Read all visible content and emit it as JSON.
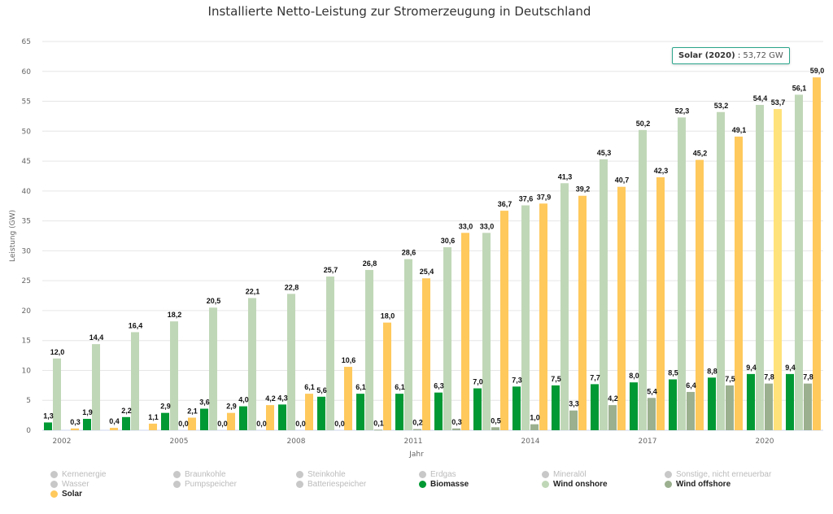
{
  "chart_data": {
    "type": "bar",
    "title": "Installierte Netto-Leistung zur Stromerzeugung in Deutschland",
    "xlabel": "Jahr",
    "ylabel": "Leistung (GW)",
    "ylim": [
      0,
      65
    ],
    "yticks": [
      0,
      5,
      10,
      15,
      20,
      25,
      30,
      35,
      40,
      45,
      50,
      55,
      60,
      65
    ],
    "grid": true,
    "legend_position": "bottom",
    "categories": [
      2002,
      2003,
      2004,
      2005,
      2006,
      2007,
      2008,
      2009,
      2010,
      2011,
      2012,
      2013,
      2014,
      2015,
      2016,
      2017,
      2018,
      2019,
      2020,
      2021
    ],
    "xtick_labels": [
      "2002",
      "2005",
      "2008",
      "2011",
      "2014",
      "2017",
      "2020"
    ],
    "series": [
      {
        "name": "Biomasse",
        "color": "#009933",
        "values": [
          1.3,
          1.9,
          2.2,
          2.9,
          3.6,
          4.0,
          4.3,
          5.6,
          6.1,
          6.1,
          6.3,
          7.0,
          7.3,
          7.5,
          7.7,
          8.0,
          8.5,
          8.8,
          9.4,
          9.4
        ]
      },
      {
        "name": "Wind onshore",
        "color": "#c0d7b7",
        "values": [
          12.0,
          14.4,
          16.4,
          18.2,
          20.5,
          22.1,
          22.8,
          25.7,
          26.8,
          28.6,
          30.6,
          33.0,
          37.6,
          41.3,
          45.3,
          50.2,
          52.3,
          53.2,
          54.4,
          56.1
        ]
      },
      {
        "name": "Wind offshore",
        "color": "#9bb08f",
        "values": [
          null,
          null,
          null,
          0.0,
          0.0,
          0.0,
          0.0,
          0.0,
          0.1,
          0.2,
          0.3,
          0.5,
          1.0,
          3.3,
          4.2,
          5.4,
          6.4,
          7.5,
          7.8,
          7.8
        ]
      },
      {
        "name": "Solar",
        "color": "#ffc95c",
        "values": [
          0.3,
          0.4,
          1.1,
          2.1,
          2.9,
          4.2,
          6.1,
          10.6,
          18.0,
          25.4,
          33.0,
          36.7,
          37.9,
          39.2,
          40.7,
          42.3,
          45.2,
          49.1,
          53.7,
          59.0
        ]
      }
    ],
    "highlight": {
      "series": "Solar",
      "category": 2020,
      "color": "#ffe27a"
    },
    "tooltip": {
      "label": "Solar (2020)",
      "separator": " : ",
      "value": "53,72 GW"
    }
  },
  "legend": [
    {
      "label": "Kernenergie",
      "color": "#c8c8c8",
      "active": false
    },
    {
      "label": "Braunkohle",
      "color": "#c8c8c8",
      "active": false
    },
    {
      "label": "Steinkohle",
      "color": "#c8c8c8",
      "active": false
    },
    {
      "label": "Erdgas",
      "color": "#c8c8c8",
      "active": false
    },
    {
      "label": "Mineralöl",
      "color": "#c8c8c8",
      "active": false
    },
    {
      "label": "Sonstige, nicht erneuerbar",
      "color": "#c8c8c8",
      "active": false
    },
    {
      "label": "Wasser",
      "color": "#c8c8c8",
      "active": false
    },
    {
      "label": "Pumpspeicher",
      "color": "#c8c8c8",
      "active": false
    },
    {
      "label": "Batteriespeicher",
      "color": "#c8c8c8",
      "active": false
    },
    {
      "label": "Biomasse",
      "color": "#009933",
      "active": true
    },
    {
      "label": "Wind onshore",
      "color": "#c0d7b7",
      "active": true
    },
    {
      "label": "Wind offshore",
      "color": "#9bb08f",
      "active": true
    },
    {
      "label": "Solar",
      "color": "#ffc95c",
      "active": true
    }
  ]
}
